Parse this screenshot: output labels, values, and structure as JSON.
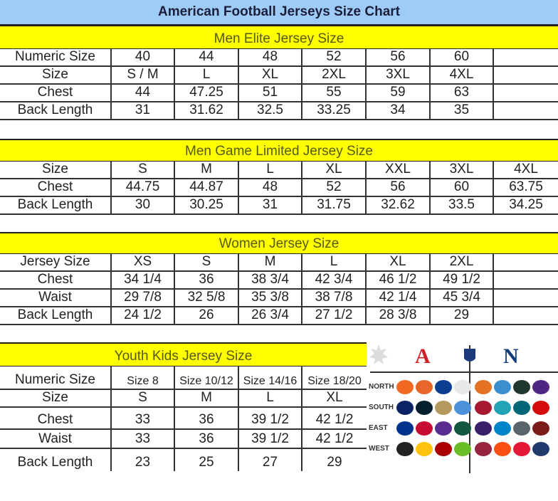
{
  "title": "American Football Jerseys Size Chart",
  "colors": {
    "title_bg": "#9fcbf7",
    "section_bg": "#ffff00",
    "afc": "#d0202a",
    "nfc": "#123e7a"
  },
  "tables": [
    {
      "heading": "Men Elite Jersey Size",
      "rows": [
        [
          "Numeric Size",
          "40",
          "44",
          "48",
          "52",
          "56",
          "60",
          ""
        ],
        [
          "Size",
          "S / M",
          "L",
          "XL",
          "2XL",
          "3XL",
          "4XL",
          ""
        ],
        [
          "Chest",
          "44",
          "47.25",
          "51",
          "55",
          "59",
          "63",
          ""
        ],
        [
          "Back Length",
          "31",
          "31.62",
          "32.5",
          "33.25",
          "34",
          "35",
          ""
        ]
      ]
    },
    {
      "heading": "Men Game Limited Jersey Size",
      "rows": [
        [
          "Size",
          "S",
          "M",
          "L",
          "XL",
          "XXL",
          "3XL",
          "4XL"
        ],
        [
          "Chest",
          "44.75",
          "44.87",
          "48",
          "52",
          "56",
          "60",
          "63.75"
        ],
        [
          "Back Length",
          "30",
          "30.25",
          "31",
          "31.75",
          "32.62",
          "33.5",
          "34.25"
        ]
      ]
    },
    {
      "heading": "Women Jersey Size",
      "rows": [
        [
          "Jersey Size",
          "XS",
          "S",
          "M",
          "L",
          "XL",
          "2XL",
          ""
        ],
        [
          "Chest",
          "34 1/4",
          "36",
          "38 3/4",
          "42 3/4",
          "46 1/2",
          "49 1/2",
          ""
        ],
        [
          "Waist",
          "29 7/8",
          "32 5/8",
          "35 3/8",
          "38 7/8",
          "42 1/4",
          "45 3/4",
          ""
        ],
        [
          "Back Length",
          "24 1/2",
          "26",
          "26 3/4",
          "27 1/2",
          "28 3/8",
          "29",
          ""
        ]
      ]
    },
    {
      "heading": "Youth Kids Jersey Size",
      "rows": [
        [
          "Numeric Size",
          "Size 8",
          "Size 10/12",
          "Size 14/16",
          "Size 18/20"
        ],
        [
          "Size",
          "S",
          "M",
          "L",
          "XL"
        ],
        [
          "Chest",
          "33",
          "36",
          "39 1/2",
          "42 1/2"
        ],
        [
          "Waist",
          "33",
          "36",
          "39 1/2",
          "42 1/2"
        ],
        [
          "Back Length",
          "23",
          "25",
          "27",
          "29"
        ]
      ]
    }
  ],
  "logos": {
    "afc_letter": "A",
    "nfc_letter": "N",
    "nfl_shield": "NFL",
    "divisions": [
      "NORTH",
      "SOUTH",
      "EAST",
      "WEST"
    ],
    "afc_teams": [
      [
        "#f26a21",
        "#e9662a",
        "#0b3d91",
        "#e8e8e8"
      ],
      [
        "#0b2265",
        "#03202f",
        "#b3995d",
        "#4b92db"
      ],
      [
        "#00338d",
        "#c60c30",
        "#5a2d91",
        "#125740"
      ],
      [
        "#222222",
        "#ffc20e",
        "#aa0000",
        "#69be28"
      ]
    ],
    "nfc_teams": [
      [
        "#e37222",
        "#3a8fcf",
        "#203731",
        "#4f2683"
      ],
      [
        "#a71930",
        "#22a3b6",
        "#006778",
        "#d50a0a"
      ],
      [
        "#3c1f6b",
        "#0085ca",
        "#59656a",
        "#7a1c1c"
      ],
      [
        "#97233f",
        "#fb4f14",
        "#e31837",
        "#233a6e"
      ]
    ]
  }
}
